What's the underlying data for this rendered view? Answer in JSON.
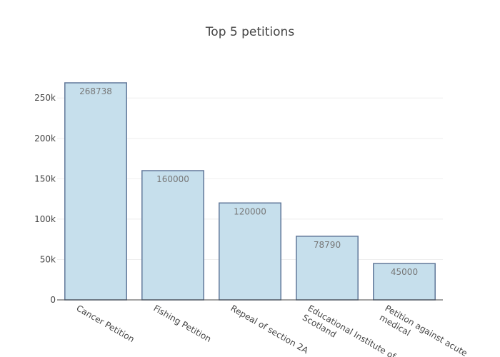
{
  "chart_data": {
    "type": "bar",
    "title": "Top 5 petitions",
    "xlabel": "",
    "ylabel": "",
    "categories": [
      "Cancer Petition",
      "Fishing Petition",
      "Repeal of section 2A",
      "Educational Institute of Scotland",
      "Petition against acute medical"
    ],
    "category_lines": [
      [
        "Cancer Petition"
      ],
      [
        "Fishing Petition"
      ],
      [
        "Repeal of section 2A"
      ],
      [
        "Educational Institute of",
        "Scotland"
      ],
      [
        "Petition against acute",
        "medical"
      ]
    ],
    "values": [
      268738,
      160000,
      120000,
      78790,
      45000
    ],
    "value_labels": [
      "268738",
      "160000",
      "120000",
      "78790",
      "45000"
    ],
    "ylim": [
      0,
      282882
    ],
    "yticks": [
      0,
      50000,
      100000,
      150000,
      200000,
      250000
    ],
    "ytick_labels": [
      "0",
      "50k",
      "100k",
      "150k",
      "200k",
      "250k"
    ],
    "grid": true,
    "legend": "none",
    "colors": {
      "bar_fill": "#c6dfec",
      "bar_stroke": "#61789a",
      "grid": "#eeeeee",
      "axis": "#444444",
      "value_text": "#777777"
    }
  }
}
